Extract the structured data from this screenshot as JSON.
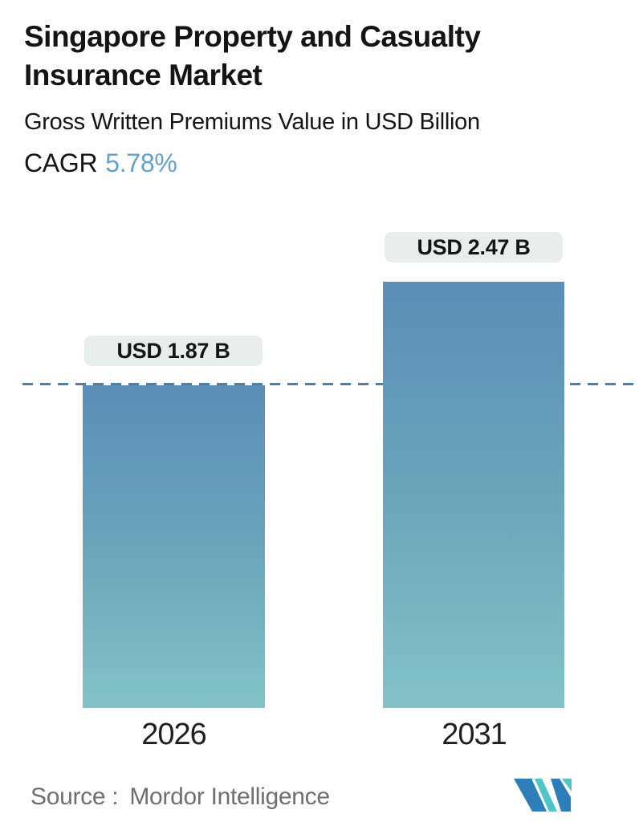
{
  "header": {
    "title": "Singapore Property and Casualty Insurance Market",
    "subtitle": "Gross Written Premiums Value in USD Billion",
    "cagr_label": "CAGR",
    "cagr_value": "5.78%"
  },
  "chart_data": {
    "type": "bar",
    "title": "Singapore Property and Casualty Insurance Market",
    "subtitle": "Gross Written Premiums Value in USD Billion",
    "unit": "USD Billion",
    "cagr_percent": 5.78,
    "categories": [
      "2026",
      "2031"
    ],
    "values": [
      1.87,
      2.47
    ],
    "value_labels": [
      "USD 1.87 B",
      "USD 2.47 B"
    ],
    "ylim": [
      0,
      2.47
    ],
    "grid": false,
    "legend": false,
    "reference_line": {
      "value": 1.87,
      "style": "dashed"
    }
  },
  "footer": {
    "source_label": "Source :",
    "source_value": "Mordor Intelligence",
    "logo": "mordor-intelligence-logo"
  },
  "colors": {
    "title_text": "#141414",
    "cagr_value": "#66a0c8",
    "bar_top": "#5a8eb8",
    "bar_mid": "#6ba6bb",
    "bar_bottom": "#82c3c8",
    "dash_line": "#4d80a9",
    "tooltip_bg": "#e8eeee",
    "source_text": "#6f6f6f",
    "logo_blue": "#2e7db6",
    "logo_teal": "#4fc4c9"
  }
}
